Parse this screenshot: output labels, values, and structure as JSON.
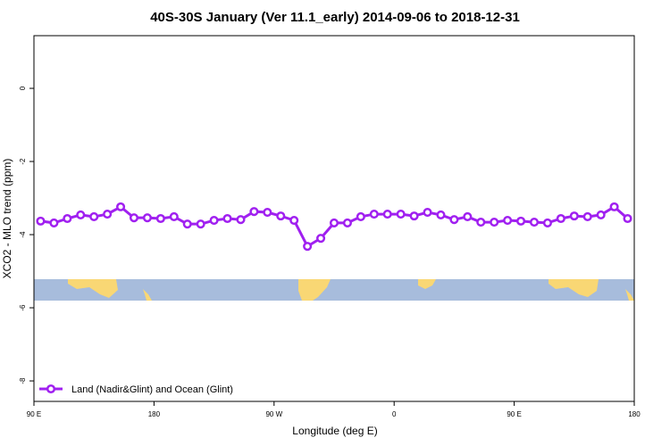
{
  "chart_data": {
    "type": "line",
    "title": "40S-30S January (Ver 11.1_early)   2014-09-06 to 2018-12-31",
    "x_label": "Longitude (deg E)",
    "y_label": "XCO2 - MLO trend (ppm)",
    "x": [
      95,
      105,
      115,
      125,
      135,
      145,
      155,
      165,
      175,
      185,
      195,
      205,
      215,
      225,
      235,
      245,
      255,
      265,
      275,
      285,
      295,
      305,
      315,
      325,
      335,
      345,
      355,
      365,
      375,
      385,
      395,
      405,
      415,
      425,
      435,
      445,
      455,
      465,
      475,
      485,
      495,
      505,
      515,
      525,
      535
    ],
    "series": [
      {
        "name": "Land (Nadir&Glint) and Ocean (Glint)",
        "color": "#a020f0",
        "values": [
          -3.63,
          -3.68,
          -3.56,
          -3.46,
          -3.51,
          -3.44,
          -3.24,
          -3.54,
          -3.54,
          -3.56,
          -3.51,
          -3.71,
          -3.71,
          -3.61,
          -3.56,
          -3.59,
          -3.37,
          -3.39,
          -3.49,
          -3.61,
          -4.32,
          -4.1,
          -3.68,
          -3.68,
          -3.51,
          -3.44,
          -3.44,
          -3.44,
          -3.49,
          -3.39,
          -3.46,
          -3.59,
          -3.51,
          -3.66,
          -3.66,
          -3.61,
          -3.63,
          -3.66,
          -3.68,
          -3.56,
          -3.49,
          -3.51,
          -3.46,
          -3.24,
          -3.56
        ]
      }
    ],
    "xlim": [
      90,
      540
    ],
    "ylim": [
      -8.56,
      1.44
    ],
    "xticks": [
      {
        "value": 90,
        "label": "90 E"
      },
      180,
      {
        "value": 270,
        "label": "90 W"
      },
      {
        "value": 360,
        "label": "0"
      },
      {
        "value": 450,
        "label": "90 E"
      },
      {
        "value": 540,
        "label": "180"
      }
    ],
    "yticks": [
      0,
      -2,
      -4,
      -6,
      -8
    ],
    "legend": "bottom-left"
  }
}
